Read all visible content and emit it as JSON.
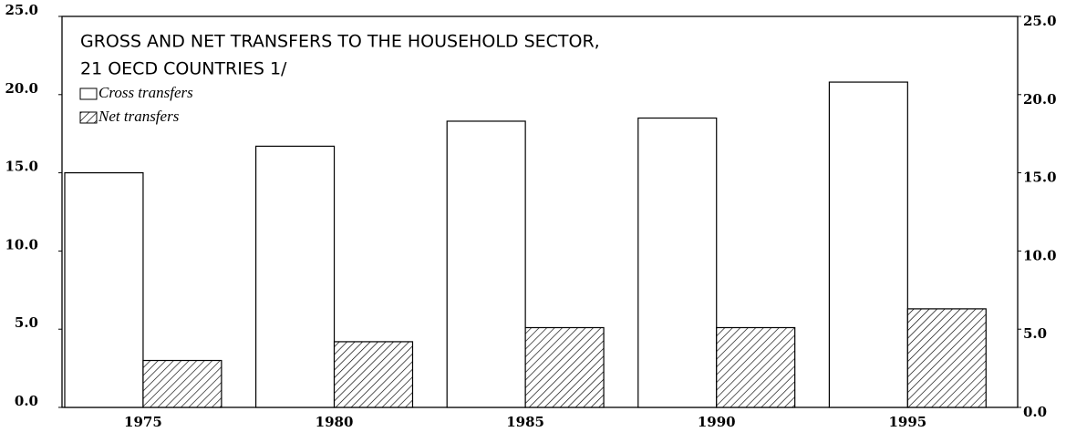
{
  "chart_data": {
    "type": "bar",
    "title": "GROSS AND NET TRANSFERS TO THE HOUSEHOLD SECTOR,",
    "subtitle": "21 OECD COUNTRIES 1/",
    "categories": [
      "1975",
      "1980",
      "1985",
      "1990",
      "1995"
    ],
    "series": [
      {
        "name": "Cross transfers",
        "color": "#ffffff",
        "values": [
          15.0,
          16.7,
          18.3,
          18.5,
          20.8
        ]
      },
      {
        "name": "Net transfers",
        "color": "#000000",
        "values": [
          3.0,
          4.2,
          5.1,
          5.1,
          6.3
        ]
      }
    ],
    "ylim": [
      0,
      25
    ],
    "yticks": [
      {
        "value": 0,
        "label": "0.0"
      },
      {
        "value": 5,
        "label": "5.0"
      },
      {
        "value": 10,
        "label": "10.0"
      },
      {
        "value": 15,
        "label": "15.0"
      },
      {
        "value": 20,
        "label": "20.0"
      },
      {
        "value": 25,
        "label": "25.0"
      }
    ],
    "y2lim": [
      0,
      25
    ],
    "y2ticks": [
      {
        "value": 0,
        "label": "0.0"
      },
      {
        "value": 5,
        "label": "5.0"
      },
      {
        "value": 10,
        "label": "10.0"
      },
      {
        "value": 15,
        "label": "15.0"
      },
      {
        "value": 20,
        "label": "20.0"
      },
      {
        "value": 25,
        "label": "25.0"
      }
    ],
    "grid": false,
    "legend": "upper left"
  }
}
